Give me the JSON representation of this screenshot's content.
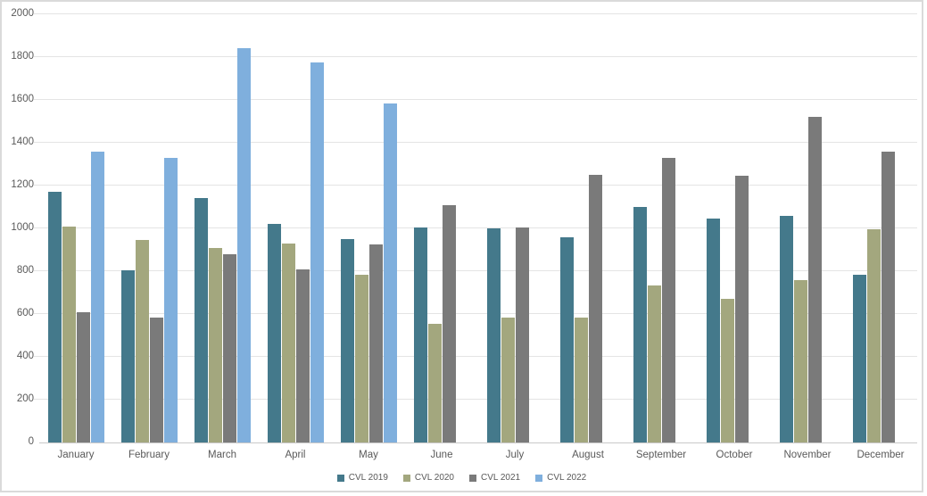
{
  "chart_data": {
    "type": "bar",
    "title": "",
    "xlabel": "",
    "ylabel": "",
    "categories": [
      "January",
      "February",
      "March",
      "April",
      "May",
      "June",
      "July",
      "August",
      "September",
      "October",
      "November",
      "December"
    ],
    "series": [
      {
        "name": "CVL 2019",
        "color": "#44798B",
        "values": [
          1170,
          805,
          1140,
          1020,
          950,
          1005,
          1000,
          960,
          1100,
          1045,
          1060,
          785
        ]
      },
      {
        "name": "CVL 2020",
        "color": "#A3A77E",
        "values": [
          1010,
          945,
          910,
          930,
          785,
          555,
          585,
          585,
          735,
          670,
          760,
          995
        ]
      },
      {
        "name": "CVL 2021",
        "color": "#7A7A7A",
        "values": [
          610,
          585,
          880,
          810,
          925,
          1110,
          1005,
          1250,
          1330,
          1245,
          1520,
          1360
        ]
      },
      {
        "name": "CVL 2022",
        "color": "#7FAFDD",
        "values": [
          1360,
          1330,
          1840,
          1775,
          1585,
          null,
          null,
          null,
          null,
          null,
          null,
          null
        ]
      }
    ],
    "ylim": [
      0,
      2000
    ],
    "yticks": [
      0,
      200,
      400,
      600,
      800,
      1000,
      1200,
      1400,
      1600,
      1800,
      2000
    ],
    "ytick_labels": [
      "0",
      "200",
      "400",
      "600",
      "800",
      "1000",
      "1200",
      "1400",
      "1600",
      "1800",
      "2000"
    ],
    "grid": true,
    "legend_position": "bottom"
  },
  "colors": {
    "axis_text": "#595959",
    "gridline": "#E4E4E4",
    "axis_line": "#C9C9C9",
    "canvas_border": "#DADADA",
    "background": "#FFFFFF"
  }
}
